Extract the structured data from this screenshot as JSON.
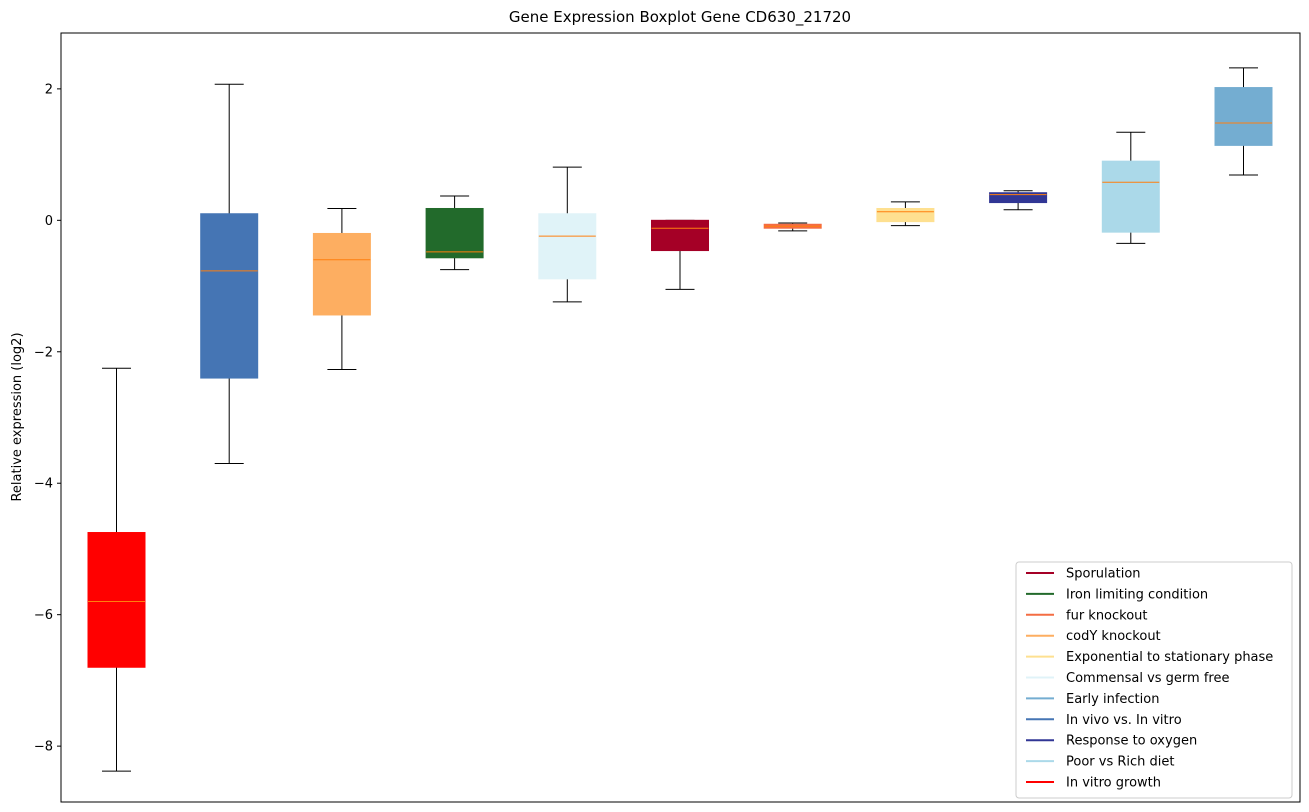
{
  "chart_data": {
    "type": "boxplot",
    "title": "Gene Expression Boxplot Gene CD630_21720",
    "xlabel": "",
    "ylabel": "Relative expression (log2)",
    "ylim": [
      -8.85,
      2.85
    ],
    "yticks": [
      -8,
      -6,
      -4,
      -2,
      0,
      2
    ],
    "ytick_labels": [
      "−8",
      "−6",
      "−4",
      "−2",
      "0",
      "2"
    ],
    "grid": false,
    "legend_position": "lower right",
    "boxes": [
      {
        "color": "#ff0000",
        "whisker_low": -8.38,
        "q1": -6.8,
        "median": -5.8,
        "q3": -4.75,
        "whisker_high": -2.25
      },
      {
        "color": "#4575b4",
        "whisker_low": -3.7,
        "q1": -2.4,
        "median": -0.77,
        "q3": 0.1,
        "whisker_high": 2.07
      },
      {
        "color": "#fdae61",
        "whisker_low": -2.27,
        "q1": -1.44,
        "median": -0.6,
        "q3": -0.2,
        "whisker_high": 0.18
      },
      {
        "color": "#226a2b",
        "whisker_low": -0.75,
        "q1": -0.57,
        "median": -0.48,
        "q3": 0.18,
        "whisker_high": 0.37
      },
      {
        "color": "#e0f3f8",
        "whisker_low": -1.24,
        "q1": -0.89,
        "median": -0.24,
        "q3": 0.1,
        "whisker_high": 0.81
      },
      {
        "color": "#a50026",
        "whisker_low": -1.05,
        "q1": -0.46,
        "median": -0.12,
        "q3": 0.0,
        "whisker_high": 0.0
      },
      {
        "color": "#f46d43",
        "whisker_low": -0.16,
        "q1": -0.12,
        "median": -0.09,
        "q3": -0.06,
        "whisker_high": -0.04
      },
      {
        "color": "#fee090",
        "whisker_low": -0.08,
        "q1": -0.02,
        "median": 0.13,
        "q3": 0.18,
        "whisker_high": 0.28
      },
      {
        "color": "#313695",
        "whisker_low": 0.16,
        "q1": 0.27,
        "median": 0.39,
        "q3": 0.42,
        "whisker_high": 0.45
      },
      {
        "color": "#abd9e9",
        "whisker_low": -0.35,
        "q1": -0.18,
        "median": 0.58,
        "q3": 0.9,
        "whisker_high": 1.34
      },
      {
        "color": "#74add1",
        "whisker_low": 0.69,
        "q1": 1.14,
        "median": 1.48,
        "q3": 2.02,
        "whisker_high": 2.32
      }
    ],
    "median_color": "#ff7f0e",
    "legend": [
      {
        "label": "Sporulation",
        "color": "#a50026"
      },
      {
        "label": "Iron limiting condition",
        "color": "#226a2b"
      },
      {
        "label": "fur knockout",
        "color": "#f46d43"
      },
      {
        "label": "codY knockout",
        "color": "#fdae61"
      },
      {
        "label": "Exponential to stationary phase",
        "color": "#fee090"
      },
      {
        "label": "Commensal vs germ free",
        "color": "#e0f3f8"
      },
      {
        "label": "Early infection",
        "color": "#74add1"
      },
      {
        "label": "In vivo vs. In vitro",
        "color": "#4575b4"
      },
      {
        "label": "Response to oxygen",
        "color": "#313695"
      },
      {
        "label": "Poor vs Rich diet",
        "color": "#abd9e9"
      },
      {
        "label": "In vitro growth",
        "color": "#ff0000"
      }
    ]
  }
}
